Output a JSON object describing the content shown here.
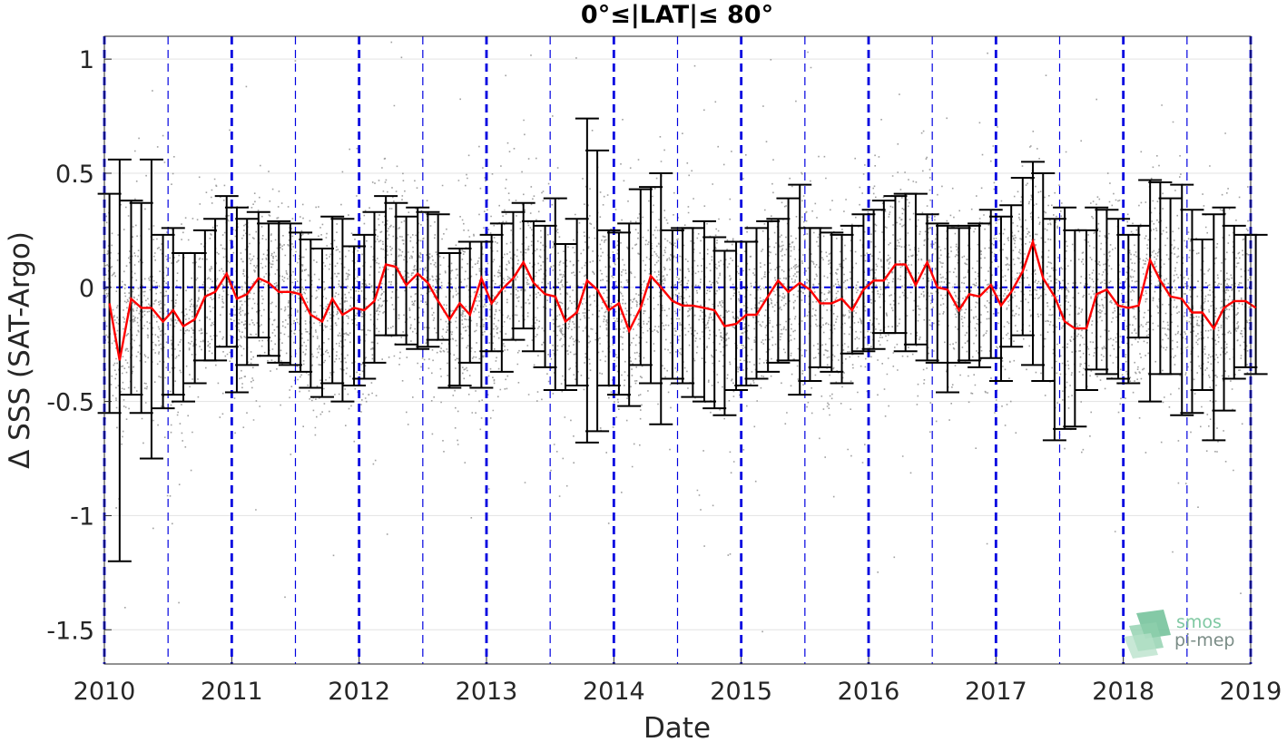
{
  "chart_data": {
    "type": "scatter",
    "title": "0°≤|LAT|≤ 80°",
    "xlabel": "Date",
    "ylabel": "Δ SSS (SAT-Argo)",
    "xlim": [
      2010.0,
      2019.0
    ],
    "ylim": [
      -1.65,
      1.1
    ],
    "xticks": [
      2010,
      2011,
      2012,
      2013,
      2014,
      2015,
      2016,
      2017,
      2018,
      2019
    ],
    "xtick_labels": [
      "2010",
      "2011",
      "2012",
      "2013",
      "2014",
      "2015",
      "2016",
      "2017",
      "2018",
      "2019"
    ],
    "yticks": [
      1,
      0.5,
      0,
      -0.5,
      -1,
      -1.5
    ],
    "ytick_labels": [
      "1",
      "0.5",
      "0",
      "-0.5",
      "-1",
      "-1.5"
    ],
    "grid": true,
    "reference_line": 0,
    "series": [
      {
        "type": "errorbar-line",
        "color": "#ff0000",
        "x": [
          2010.04,
          2010.12,
          2010.21,
          2010.29,
          2010.37,
          2010.46,
          2010.54,
          2010.62,
          2010.71,
          2010.79,
          2010.87,
          2010.96,
          2011.04,
          2011.12,
          2011.21,
          2011.29,
          2011.37,
          2011.46,
          2011.54,
          2011.62,
          2011.71,
          2011.79,
          2011.87,
          2011.96,
          2012.04,
          2012.12,
          2012.21,
          2012.29,
          2012.37,
          2012.46,
          2012.54,
          2012.62,
          2012.71,
          2012.79,
          2012.87,
          2012.96,
          2013.04,
          2013.12,
          2013.21,
          2013.29,
          2013.37,
          2013.46,
          2013.54,
          2013.62,
          2013.71,
          2013.79,
          2013.87,
          2013.96,
          2014.04,
          2014.12,
          2014.21,
          2014.29,
          2014.37,
          2014.46,
          2014.54,
          2014.62,
          2014.71,
          2014.79,
          2014.87,
          2014.96,
          2015.04,
          2015.12,
          2015.21,
          2015.29,
          2015.37,
          2015.46,
          2015.54,
          2015.62,
          2015.71,
          2015.79,
          2015.87,
          2015.96,
          2016.04,
          2016.12,
          2016.21,
          2016.29,
          2016.37,
          2016.46,
          2016.54,
          2016.62,
          2016.71,
          2016.79,
          2016.87,
          2016.96,
          2017.04,
          2017.12,
          2017.21,
          2017.29,
          2017.37,
          2017.46,
          2017.54,
          2017.62,
          2017.71,
          2017.79,
          2017.87,
          2017.96,
          2018.04,
          2018.12,
          2018.21,
          2018.29,
          2018.37,
          2018.46,
          2018.54,
          2018.62,
          2018.71,
          2018.79,
          2018.87,
          2018.96,
          2019.04
        ],
        "y": [
          -0.07,
          -0.32,
          -0.05,
          -0.09,
          -0.09,
          -0.15,
          -0.1,
          -0.17,
          -0.14,
          -0.04,
          -0.02,
          0.06,
          -0.05,
          -0.03,
          0.04,
          0.02,
          -0.02,
          -0.02,
          -0.03,
          -0.12,
          -0.15,
          -0.05,
          -0.12,
          -0.09,
          -0.1,
          -0.06,
          0.1,
          0.09,
          0.01,
          0.06,
          0.02,
          -0.06,
          -0.14,
          -0.07,
          -0.12,
          0.04,
          -0.07,
          -0.01,
          0.04,
          0.11,
          0.02,
          -0.03,
          -0.04,
          -0.15,
          -0.11,
          0.03,
          -0.01,
          -0.1,
          -0.07,
          -0.19,
          -0.09,
          0.05,
          0.0,
          -0.06,
          -0.08,
          -0.08,
          -0.09,
          -0.1,
          -0.17,
          -0.16,
          -0.12,
          -0.12,
          -0.04,
          0.03,
          -0.02,
          0.02,
          -0.01,
          -0.07,
          -0.07,
          -0.05,
          -0.1,
          -0.01,
          0.03,
          0.03,
          0.1,
          0.1,
          0.01,
          0.11,
          0.0,
          -0.01,
          -0.1,
          -0.03,
          -0.04,
          0.01,
          -0.08,
          -0.02,
          0.07,
          0.2,
          0.04,
          -0.04,
          -0.15,
          -0.18,
          -0.18,
          -0.03,
          -0.01,
          -0.08,
          -0.09,
          -0.08,
          0.12,
          0.03,
          -0.04,
          -0.05,
          -0.11,
          -0.11,
          -0.18,
          -0.09,
          -0.06,
          -0.06,
          -0.09
        ],
        "err_upper": [
          0.41,
          0.56,
          0.38,
          0.37,
          0.56,
          0.23,
          0.26,
          0.15,
          0.15,
          0.25,
          0.3,
          0.4,
          0.35,
          0.3,
          0.33,
          0.28,
          0.29,
          0.28,
          0.24,
          0.21,
          0.17,
          0.31,
          0.3,
          0.18,
          0.23,
          0.33,
          0.4,
          0.37,
          0.31,
          0.35,
          0.33,
          0.32,
          0.15,
          0.17,
          0.2,
          0.2,
          0.23,
          0.28,
          0.33,
          0.37,
          0.29,
          0.27,
          0.39,
          0.19,
          0.3,
          0.74,
          0.6,
          0.25,
          0.24,
          0.28,
          0.43,
          0.44,
          0.5,
          0.25,
          0.26,
          0.26,
          0.29,
          0.22,
          0.16,
          0.2,
          0.2,
          0.26,
          0.29,
          0.3,
          0.39,
          0.45,
          0.26,
          0.26,
          0.24,
          0.23,
          0.27,
          0.32,
          0.34,
          0.38,
          0.4,
          0.41,
          0.41,
          0.32,
          0.28,
          0.27,
          0.26,
          0.27,
          0.28,
          0.34,
          0.31,
          0.36,
          0.48,
          0.55,
          0.5,
          0.3,
          0.35,
          0.25,
          0.25,
          0.35,
          0.34,
          0.3,
          0.23,
          0.27,
          0.47,
          0.46,
          0.39,
          0.45,
          0.34,
          0.21,
          0.32,
          0.35,
          0.27,
          0.23,
          0.23
        ],
        "err_lower": [
          -0.55,
          -1.2,
          -0.47,
          -0.55,
          -0.75,
          -0.53,
          -0.47,
          -0.5,
          -0.42,
          -0.32,
          -0.32,
          -0.26,
          -0.46,
          -0.34,
          -0.22,
          -0.3,
          -0.33,
          -0.34,
          -0.37,
          -0.44,
          -0.48,
          -0.42,
          -0.5,
          -0.43,
          -0.4,
          -0.33,
          -0.21,
          -0.21,
          -0.25,
          -0.27,
          -0.26,
          -0.23,
          -0.44,
          -0.43,
          -0.33,
          -0.44,
          -0.28,
          -0.37,
          -0.23,
          -0.18,
          -0.28,
          -0.35,
          -0.45,
          -0.45,
          -0.43,
          -0.68,
          -0.63,
          -0.43,
          -0.47,
          -0.52,
          -0.34,
          -0.42,
          -0.6,
          -0.4,
          -0.42,
          -0.48,
          -0.5,
          -0.53,
          -0.56,
          -0.45,
          -0.43,
          -0.4,
          -0.37,
          -0.33,
          -0.32,
          -0.47,
          -0.41,
          -0.35,
          -0.37,
          -0.42,
          -0.29,
          -0.28,
          -0.27,
          -0.2,
          -0.2,
          -0.28,
          -0.25,
          -0.32,
          -0.33,
          -0.46,
          -0.33,
          -0.32,
          -0.35,
          -0.31,
          -0.41,
          -0.26,
          -0.21,
          -0.34,
          -0.41,
          -0.67,
          -0.62,
          -0.61,
          -0.45,
          -0.36,
          -0.38,
          -0.4,
          -0.42,
          -0.22,
          -0.5,
          -0.38,
          -0.38,
          -0.56,
          -0.55,
          -0.45,
          -0.67,
          -0.54,
          -0.4,
          -0.35,
          -0.38
        ]
      }
    ],
    "scatter": {
      "color": "#808080",
      "description_count": 18000
    },
    "vertical_markers": {
      "year_lines_color": "#0000e0",
      "half_year_lines": [
        2010.5,
        2011.5,
        2012.5,
        2013.5,
        2014.5,
        2015.5,
        2016.5,
        2017.5,
        2018.5
      ]
    }
  },
  "logo": {
    "line1": "smos",
    "line2": "pi-mep"
  }
}
